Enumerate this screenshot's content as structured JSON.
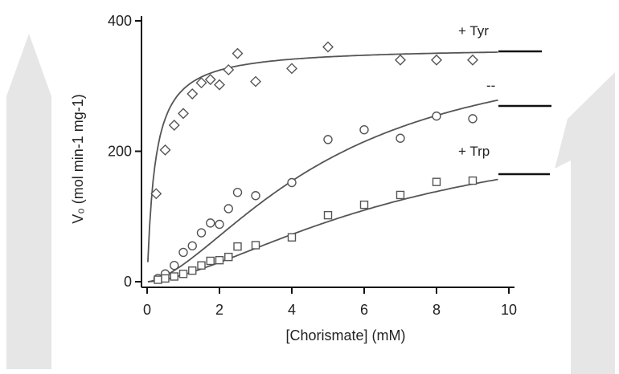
{
  "chart_data": {
    "type": "scatter",
    "xlabel": "[Chorismate] (mM)",
    "ylabel": "V₀ (mol min-1 mg-1)",
    "xlim": [
      0,
      10
    ],
    "ylim": [
      0,
      400
    ],
    "xticks": [
      "0",
      "2",
      "4",
      "6",
      "8",
      "10"
    ],
    "yticks": [
      "0",
      "200",
      "400"
    ],
    "grid": false,
    "series": [
      {
        "name": "+ Tyr",
        "marker": "diamond",
        "x": [
          0.25,
          0.5,
          0.75,
          1.0,
          1.25,
          1.5,
          1.75,
          2.0,
          2.25,
          2.5,
          3.0,
          4.0,
          5.0,
          7.0,
          8.0,
          9.0
        ],
        "y": [
          135,
          202,
          240,
          258,
          288,
          305,
          310,
          302,
          325,
          350,
          307,
          327,
          360,
          340,
          340,
          340
        ],
        "fit": {
          "model": "michaelis-menten",
          "vmax": 360,
          "km": 0.22
        }
      },
      {
        "name": "",
        "marker": "circle",
        "x": [
          0.3,
          0.5,
          0.75,
          1.0,
          1.25,
          1.5,
          1.75,
          2.0,
          2.25,
          2.5,
          3.0,
          4.0,
          5.0,
          6.0,
          7.0,
          8.0,
          9.0
        ],
        "y": [
          5,
          12,
          25,
          45,
          55,
          75,
          90,
          88,
          112,
          137,
          132,
          152,
          218,
          233,
          220,
          254,
          250
        ],
        "fit": {
          "model": "hill",
          "vmax": 375,
          "k": 5.0,
          "n": 1.6
        }
      },
      {
        "name": "+ Trp",
        "marker": "square",
        "x": [
          0.3,
          0.5,
          0.75,
          1.0,
          1.25,
          1.5,
          1.75,
          2.0,
          2.25,
          2.5,
          3.0,
          4.0,
          5.0,
          6.0,
          7.0,
          8.0,
          9.0
        ],
        "y": [
          3,
          5,
          8,
          12,
          17,
          25,
          32,
          33,
          38,
          54,
          56,
          68,
          102,
          118,
          133,
          153,
          155
        ],
        "fit": {
          "model": "hill",
          "vmax": 250,
          "k": 7.0,
          "n": 1.6
        }
      }
    ],
    "annotations": [
      "--"
    ]
  },
  "colors": {
    "axis": "#111111",
    "fit": "#555555",
    "marker": "#555555",
    "watermark": "#e6e6e6"
  }
}
